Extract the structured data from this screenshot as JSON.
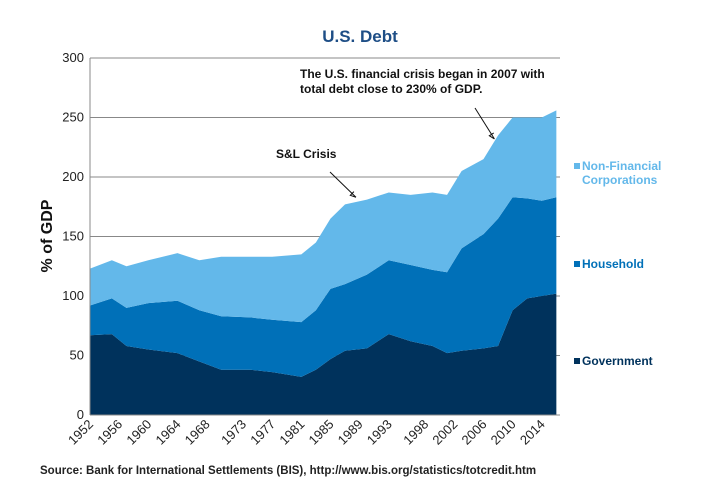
{
  "chart_data": {
    "type": "area",
    "stacked": true,
    "title": "U.S. Debt",
    "ylabel": "% of GDP",
    "xlabel": "",
    "ylim": [
      0,
      300
    ],
    "yticks": [
      0,
      50,
      100,
      150,
      200,
      250,
      300
    ],
    "xlim": [
      1952,
      2016.5
    ],
    "xtick_labels": [
      "1952",
      "1956",
      "1960",
      "1964",
      "1968",
      "1973",
      "1977",
      "1981",
      "1985",
      "1989",
      "1993",
      "1998",
      "2002",
      "2006",
      "2010",
      "2014"
    ],
    "grid": true,
    "legend_placement": "right",
    "x": [
      1952,
      1955,
      1957,
      1960,
      1964,
      1967,
      1970,
      1974,
      1977,
      1981,
      1983,
      1985,
      1987,
      1990,
      1993,
      1996,
      1999,
      2001,
      2003,
      2006,
      2008,
      2010,
      2012,
      2014,
      2016
    ],
    "series": [
      {
        "name": "Government",
        "color": "#00325c",
        "values": [
          67,
          68,
          58,
          55,
          52,
          45,
          38,
          38,
          36,
          32,
          38,
          47,
          54,
          56,
          68,
          62,
          58,
          52,
          54,
          56,
          58,
          88,
          98,
          100,
          102
        ]
      },
      {
        "name": "Household",
        "color": "#0070b8",
        "values": [
          25,
          30,
          32,
          39,
          44,
          43,
          45,
          44,
          44,
          46,
          50,
          59,
          56,
          62,
          62,
          64,
          64,
          68,
          86,
          96,
          107,
          95,
          84,
          80,
          81
        ]
      },
      {
        "name": "Non-Financial Corporations",
        "color": "#63b8ea",
        "values": [
          31,
          32,
          35,
          36,
          40,
          42,
          50,
          51,
          53,
          57,
          57,
          59,
          67,
          63,
          57,
          59,
          65,
          65,
          65,
          63,
          70,
          67,
          68,
          70,
          73
        ]
      }
    ],
    "annotations": [
      {
        "lines": [
          "The U.S. financial crisis began in 2007 with",
          "total debt  close to 230% of GDP."
        ],
        "points_to": {
          "x": 2007.5,
          "y": 232
        }
      },
      {
        "lines": [
          "S&L Crisis"
        ],
        "points_to": {
          "x": 1988.5,
          "y": 183
        }
      }
    ],
    "source": "Source: Bank for International Settlements (BIS), http://www.bis.org/statistics/totcredit.htm"
  }
}
